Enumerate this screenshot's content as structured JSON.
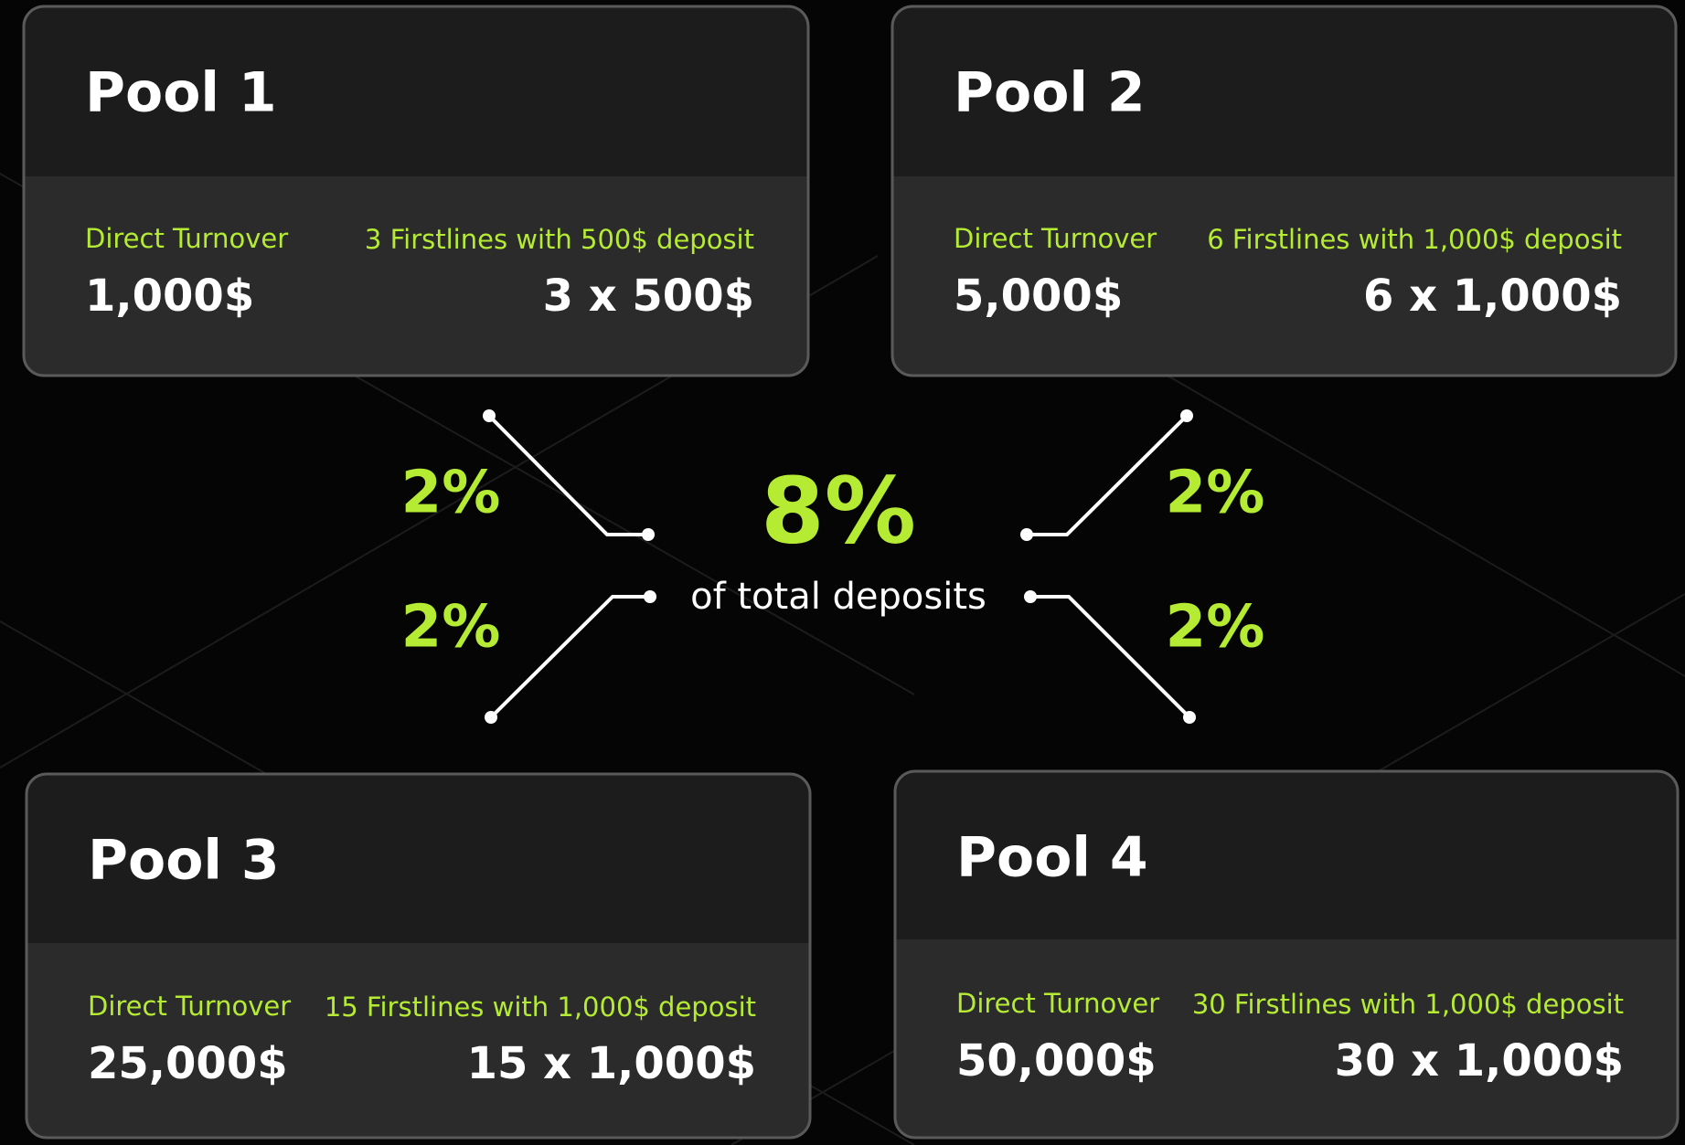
{
  "pools": [
    {
      "title": "Pool 1",
      "turnover_label": "Direct Turnover",
      "turnover_value": "1,000$",
      "firstlines_label": "3 Firstlines with 500$ deposit",
      "firstlines_value": "3 x 500$"
    },
    {
      "title": "Pool 2",
      "turnover_label": "Direct Turnover",
      "turnover_value": "5,000$",
      "firstlines_label": "6 Firstlines with 1,000$ deposit",
      "firstlines_value": "6 x 1,000$"
    },
    {
      "title": "Pool 3",
      "turnover_label": "Direct Turnover",
      "turnover_value": "25,000$",
      "firstlines_label": "15 Firstlines with 1,000$ deposit",
      "firstlines_value": "15 x 1,000$"
    },
    {
      "title": "Pool 4",
      "turnover_label": "Direct Turnover",
      "turnover_value": "50,000$",
      "firstlines_label": "30 Firstlines with 1,000$ deposit",
      "firstlines_value": "30 x 1,000$"
    }
  ],
  "center": {
    "value": "8%",
    "caption": "of total deposits"
  },
  "shares": [
    "2%",
    "2%",
    "2%",
    "2%"
  ]
}
